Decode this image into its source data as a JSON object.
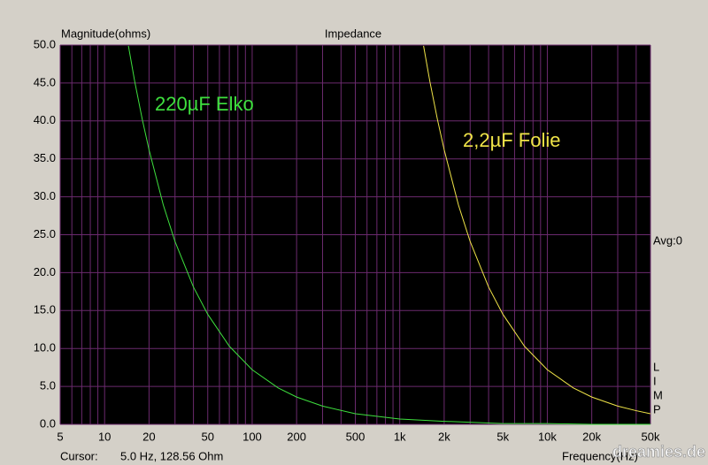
{
  "chart_data": {
    "type": "line",
    "title": "Impedance",
    "y_label": "Magnitude(ohms)",
    "x_label": "Frequency(Hz)",
    "xscale": "log",
    "grid": true,
    "xlim": [
      5,
      50000
    ],
    "ylim": [
      0,
      50
    ],
    "xticks": [
      5,
      10,
      20,
      50,
      100,
      200,
      500,
      {
        "value": 1000,
        "label": "1k"
      },
      {
        "value": 2000,
        "label": "2k"
      },
      {
        "value": 5000,
        "label": "5k"
      },
      {
        "value": 10000,
        "label": "10k"
      },
      {
        "value": 20000,
        "label": "20k"
      },
      {
        "value": 50000,
        "label": "50k"
      }
    ],
    "x_minor_ticks": [
      6,
      7,
      8,
      9,
      30,
      40,
      60,
      70,
      80,
      90,
      300,
      400,
      600,
      700,
      800,
      900,
      3000,
      4000,
      6000,
      7000,
      8000,
      9000,
      30000,
      40000
    ],
    "yticks": [
      {
        "value": 0,
        "label": "0.0"
      },
      {
        "value": 5,
        "label": "5.0"
      },
      {
        "value": 10,
        "label": "10.0"
      },
      {
        "value": 15,
        "label": "15.0"
      },
      {
        "value": 20,
        "label": "20.0"
      },
      {
        "value": 25,
        "label": "25.0"
      },
      {
        "value": 30,
        "label": "30.0"
      },
      {
        "value": 35,
        "label": "35.0"
      },
      {
        "value": 40,
        "label": "40.0"
      },
      {
        "value": 45,
        "label": "45.0"
      },
      {
        "value": 50,
        "label": "50.0"
      }
    ],
    "series": [
      {
        "name": "220µF Elko",
        "color": "#3ee03e",
        "x": [
          14.5,
          16,
          18,
          20,
          25,
          30,
          40,
          50,
          70,
          100,
          150,
          200,
          300,
          500,
          1000,
          2000,
          5000,
          10000,
          20000,
          50000
        ],
        "values": [
          49.9,
          45.2,
          40.2,
          36.2,
          28.9,
          24.1,
          18.1,
          14.5,
          10.3,
          7.2,
          4.8,
          3.6,
          2.4,
          1.4,
          0.7,
          0.4,
          0.1,
          0.1,
          0.0,
          0.0
        ]
      },
      {
        "name": "2,2µF Folie",
        "color": "#f0e448",
        "x": [
          1450,
          1600,
          1800,
          2000,
          2500,
          3000,
          4000,
          5000,
          7000,
          10000,
          15000,
          20000,
          30000,
          40000,
          50000
        ],
        "values": [
          49.9,
          45.2,
          40.2,
          36.2,
          28.9,
          24.1,
          18.1,
          14.5,
          10.3,
          7.2,
          4.8,
          3.6,
          2.4,
          1.8,
          1.4
        ]
      }
    ],
    "side_label": "Avg:0",
    "program_letters": [
      "L",
      "I",
      "M",
      "P"
    ],
    "cursor_label": "Cursor:",
    "cursor_value": "5.0 Hz, 128.56 Ohm",
    "watermark": "dreamies.de"
  }
}
